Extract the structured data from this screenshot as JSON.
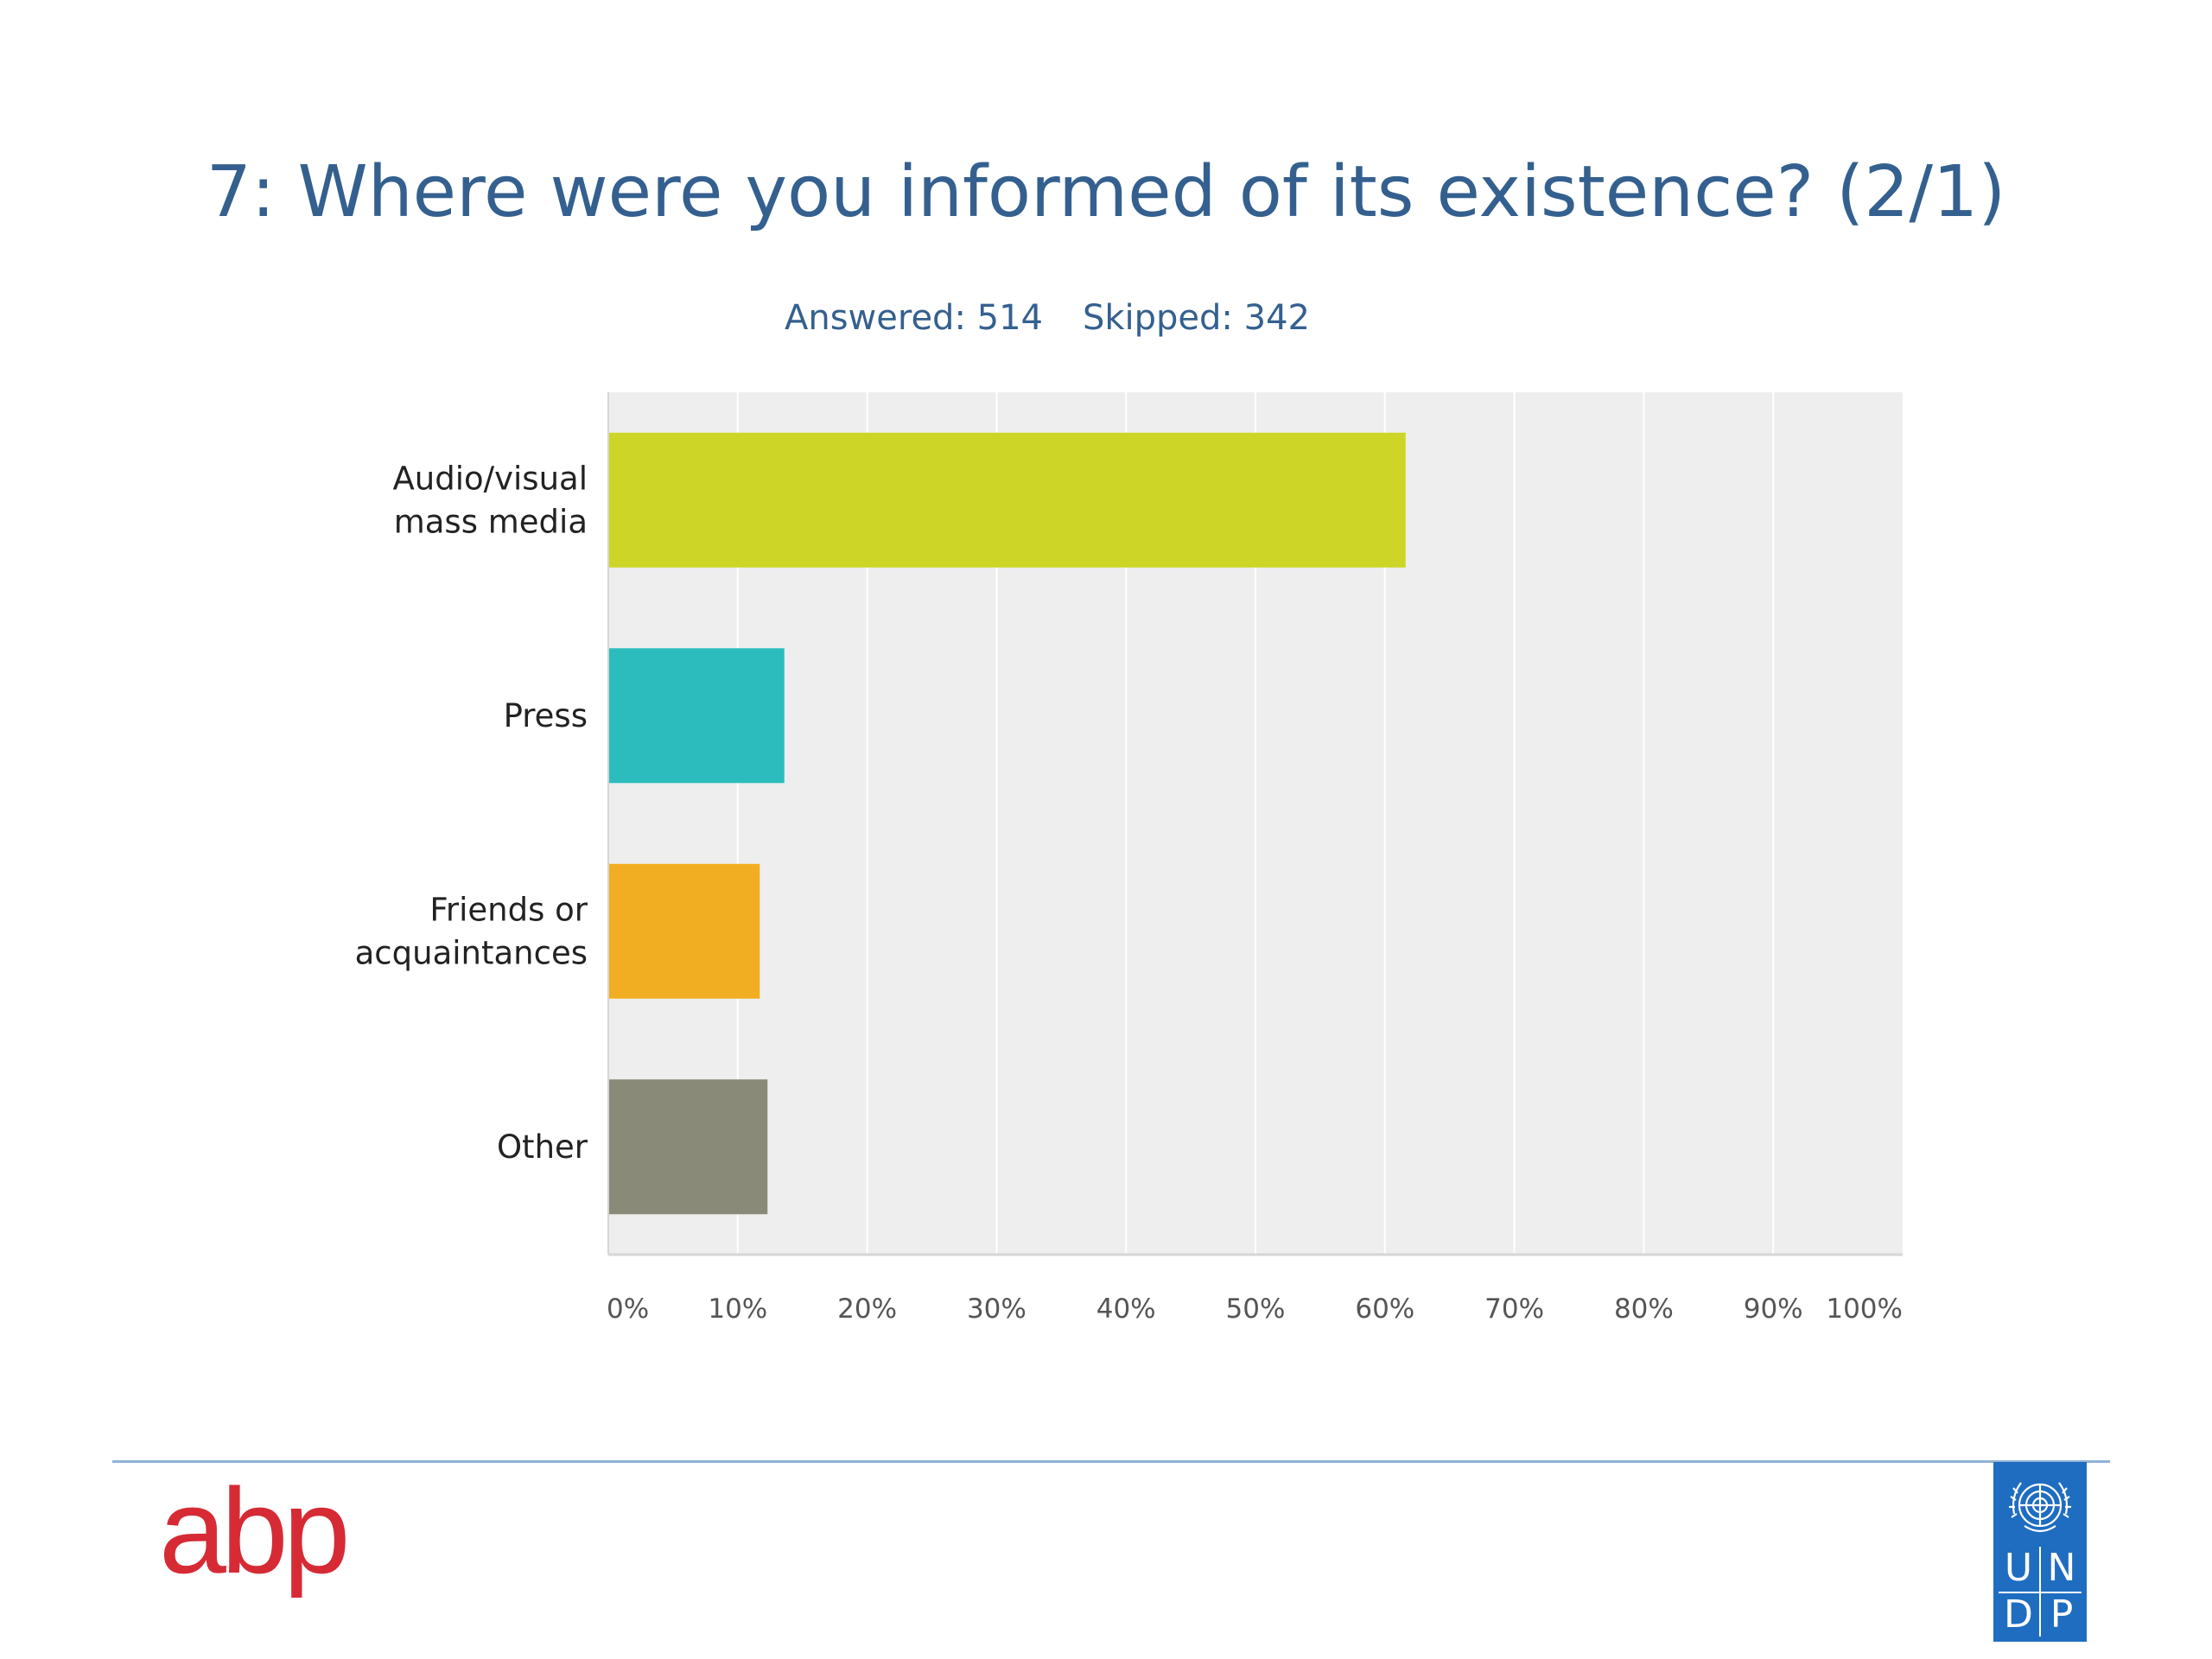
{
  "slide": {
    "title": "7: Where were you informed of its existence? (2/1)",
    "answered": "Answered: 514",
    "skipped": "Skipped: 342"
  },
  "chart_data": {
    "type": "bar",
    "orientation": "horizontal",
    "categories": [
      "Audio/visual mass media",
      "Press",
      "Friends or acquaintances",
      "Other"
    ],
    "category_label_lines": [
      [
        "Audio/visual",
        "mass media"
      ],
      [
        "Press"
      ],
      [
        "Friends or",
        "acquaintances"
      ],
      [
        "Other"
      ]
    ],
    "values": [
      61.6,
      13.6,
      11.7,
      12.3
    ],
    "value_unit": "%",
    "xlim": [
      0,
      100
    ],
    "x_ticks": [
      0,
      10,
      20,
      30,
      40,
      50,
      60,
      70,
      80,
      90,
      100
    ],
    "x_tick_labels": [
      "0%",
      "10%",
      "20%",
      "30%",
      "40%",
      "50%",
      "60%",
      "70%",
      "80%",
      "90%",
      "100%"
    ],
    "bar_colors": [
      "#cdd626",
      "#2dbcbd",
      "#f2ae22",
      "#8a8a79"
    ],
    "plot_background": "#eeeeee",
    "grid": true,
    "legend": "none"
  },
  "colors": {
    "title": "#34608f",
    "divider": "#8fb3d6",
    "abp_logo": "#d62b35",
    "undp_logo_bg": "#1f6dc1"
  },
  "footer": {
    "left_logo": "abp",
    "right_logo": "UNDP",
    "right_logo_letters": [
      "U",
      "N",
      "D",
      "P"
    ],
    "right_logo_icon": "un-emblem-icon"
  }
}
